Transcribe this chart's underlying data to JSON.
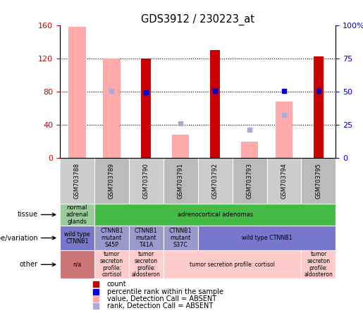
{
  "title": "GDS3912 / 230223_at",
  "samples": [
    "GSM703788",
    "GSM703789",
    "GSM703790",
    "GSM703791",
    "GSM703792",
    "GSM703793",
    "GSM703794",
    "GSM703795"
  ],
  "count_red": [
    null,
    null,
    120,
    null,
    130,
    null,
    null,
    122
  ],
  "value_pink": [
    158,
    120,
    null,
    28,
    null,
    20,
    68,
    null
  ],
  "rank_blue": [
    null,
    null,
    79,
    null,
    81,
    null,
    81,
    81
  ],
  "rank_lightblue": [
    null,
    81,
    null,
    42,
    null,
    34,
    52,
    null
  ],
  "ylim_left": [
    0,
    160
  ],
  "ylim_right": [
    0,
    100
  ],
  "yticks_left": [
    0,
    40,
    80,
    120,
    160
  ],
  "ytick_labels_left": [
    "0",
    "40",
    "80",
    "120",
    "160"
  ],
  "yticks_right": [
    0,
    25,
    50,
    75,
    100
  ],
  "ytick_labels_right": [
    "0",
    "25",
    "50",
    "75",
    "100%"
  ],
  "color_count": "#cc0000",
  "color_rank_present": "#0000cc",
  "color_value_absent": "#ffaaaa",
  "color_rank_absent": "#aaaadd",
  "tissue_cells": [
    {
      "text": "normal\nadrenal\nglands",
      "color": "#99cc99",
      "span": 1
    },
    {
      "text": "adrenocortical adenomas",
      "color": "#44bb44",
      "span": 7
    }
  ],
  "genotype_cells": [
    {
      "text": "wild type\nCTNNB1",
      "color": "#7777cc",
      "span": 1
    },
    {
      "text": "CTNNB1\nmutant\nS45P",
      "color": "#9999cc",
      "span": 1
    },
    {
      "text": "CTNNB1\nmutant\nT41A",
      "color": "#9999cc",
      "span": 1
    },
    {
      "text": "CTNNB1\nmutant\nS37C",
      "color": "#9999cc",
      "span": 1
    },
    {
      "text": "wild type CTNNB1",
      "color": "#7777cc",
      "span": 4
    }
  ],
  "other_cells": [
    {
      "text": "n/a",
      "color": "#cc7777",
      "span": 1
    },
    {
      "text": "tumor\nsecreton\nprofile:\ncortisol",
      "color": "#ffcccc",
      "span": 1
    },
    {
      "text": "tumor\nsecreton\nprofile:\naldosteron",
      "color": "#ffcccc",
      "span": 1
    },
    {
      "text": "tumor secretion profile: cortisol",
      "color": "#ffcccc",
      "span": 4
    },
    {
      "text": "tumor\nsecreton\nprofile:\naldosteron",
      "color": "#ffcccc",
      "span": 1
    }
  ],
  "row_labels": [
    "tissue",
    "genotype/variation",
    "other"
  ],
  "legend_items": [
    {
      "label": "count",
      "color": "#cc0000"
    },
    {
      "label": "percentile rank within the sample",
      "color": "#0000cc"
    },
    {
      "label": "value, Detection Call = ABSENT",
      "color": "#ffaaaa"
    },
    {
      "label": "rank, Detection Call = ABSENT",
      "color": "#aaaadd"
    }
  ],
  "col_bg": "#cccccc",
  "background_color": "#ffffff",
  "label_color_left": "#cc0000",
  "label_color_right": "#0000cc"
}
